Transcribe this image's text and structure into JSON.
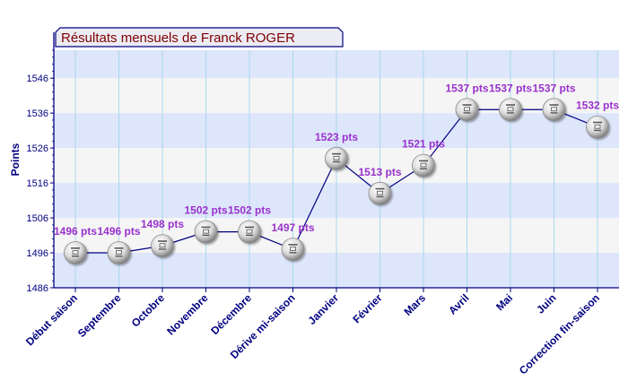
{
  "chart_data": {
    "type": "line",
    "title": "Résultats mensuels de Franck ROGER",
    "ylabel": "Points",
    "xlabel": "",
    "ylim": [
      1486,
      1554
    ],
    "yticks": [
      1486,
      1496,
      1506,
      1516,
      1526,
      1536,
      1546
    ],
    "categories": [
      "Début saison",
      "Septembre",
      "Octobre",
      "Novembre",
      "Décembre",
      "Dérive mi-saison",
      "Janvier",
      "Février",
      "Mars",
      "Avril",
      "Mai",
      "Juin",
      "Correction fin-saison"
    ],
    "values": [
      1496,
      1496,
      1498,
      1502,
      1502,
      1497,
      1523,
      1513,
      1521,
      1537,
      1537,
      1537,
      1532
    ],
    "data_labels": [
      "1496 pts",
      "1496 pts",
      "1498 pts",
      "1502 pts",
      "1502 pts",
      "1497 pts",
      "1523 pts",
      "1513 pts",
      "1521 pts",
      "1537 pts",
      "1537 pts",
      "1537 pts",
      "1532 pts"
    ],
    "grid": true,
    "colors": {
      "title_text": "#800000",
      "title_bg": "#ececf4",
      "axis": "#000080",
      "band_blue": "#dde6fb",
      "band_grey": "#f5f5f5",
      "vgrid": "#a8d8ee",
      "line": "#000080",
      "data_label": "#9932cc",
      "tick_label": "#000080"
    }
  }
}
